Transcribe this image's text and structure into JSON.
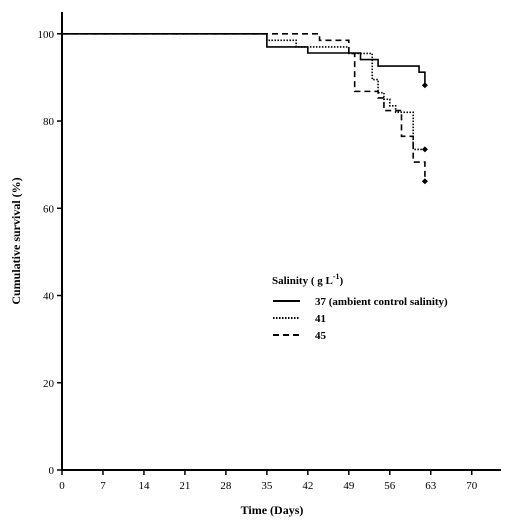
{
  "chart_data": {
    "type": "line",
    "step": true,
    "xlabel": "Time (Days)",
    "ylabel": "Cumulative survival (%)",
    "xlim": [
      0,
      75
    ],
    "ylim": [
      0,
      105
    ],
    "xticks": [
      0,
      7,
      14,
      21,
      28,
      35,
      42,
      49,
      56,
      63,
      70
    ],
    "yticks": [
      0,
      20,
      40,
      60,
      80,
      100
    ],
    "grid": false,
    "legend": {
      "title": "Salinity ( g L",
      "title_sup": "-1",
      "title_end": ")",
      "placement": "center-right"
    },
    "series": [
      {
        "name": "37 (ambient control salinity)",
        "dash": "solid",
        "x": [
          0,
          35,
          42,
          49,
          51,
          54,
          61,
          62
        ],
        "y": [
          100,
          97,
          95.6,
          95.6,
          94.1,
          92.6,
          91.2,
          88.2
        ],
        "end_marker": {
          "x": 62,
          "y": 88.2
        }
      },
      {
        "name": "41",
        "dash": "dotted",
        "x": [
          0,
          35,
          40,
          49,
          53,
          54,
          55,
          56,
          57,
          60,
          62
        ],
        "y": [
          100,
          98.5,
          97,
          95.5,
          89.5,
          86.5,
          85,
          83.5,
          82,
          73.5,
          73.5
        ],
        "end_marker": {
          "x": 62,
          "y": 73.5
        }
      },
      {
        "name": "45",
        "dash": "dashed",
        "x": [
          0,
          35,
          44,
          49,
          50,
          54,
          55,
          57,
          58,
          60,
          62
        ],
        "y": [
          100,
          100,
          98.5,
          95.5,
          86.8,
          85.3,
          82.4,
          82.4,
          76.5,
          70.6,
          66.2
        ],
        "end_marker": {
          "x": 62,
          "y": 66.2
        }
      }
    ]
  }
}
